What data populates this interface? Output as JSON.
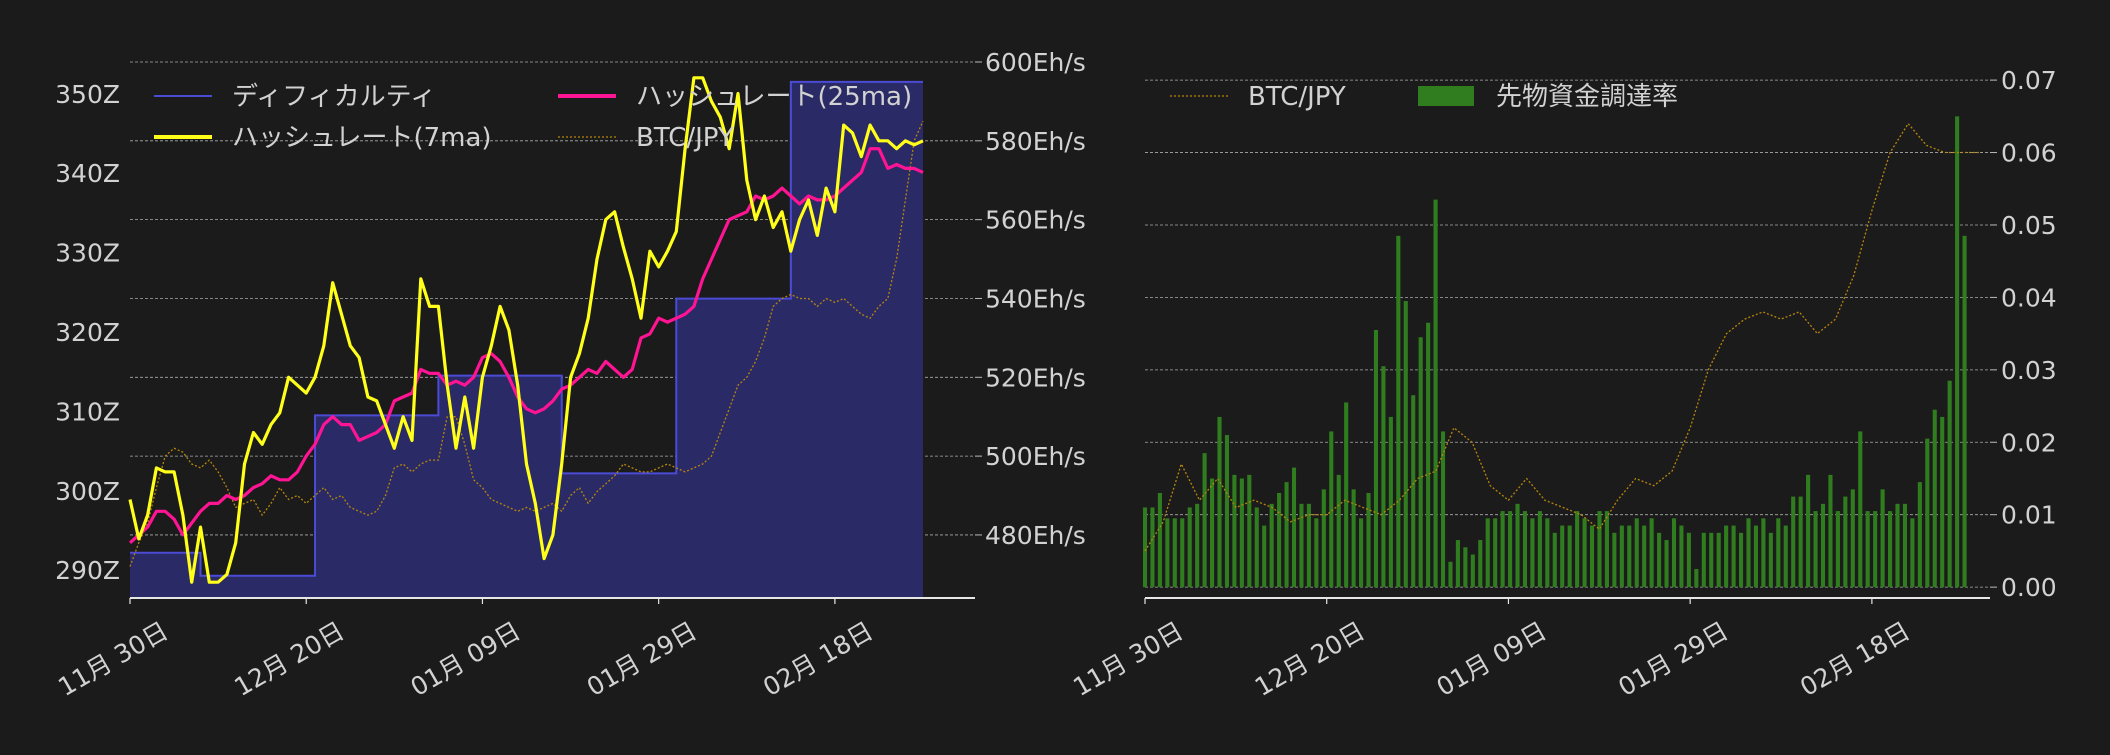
{
  "colors": {
    "background": "#1b1b1b",
    "text": "#d2d2d2",
    "grid": "#bbbbbb",
    "difficulty_line": "#4b4bd6",
    "difficulty_fill": "#2a2a66",
    "hashrate_7ma": "#ffff1a",
    "hashrate_25ma": "#ff1493",
    "btc_jpy": "#b8860b",
    "funding_bar": "#2f7d1e"
  },
  "chart_data": [
    {
      "type": "line",
      "x_tick_labels": [
        "11月 30日",
        "12月 20日",
        "01月 09日",
        "01月 29日",
        "02月 18日"
      ],
      "x_days": {
        "start": 0,
        "end": 90,
        "ticks": [
          0,
          20,
          40,
          60,
          80
        ]
      },
      "left_axis": {
        "ticks": [
          290,
          300,
          310,
          320,
          330,
          340,
          350
        ],
        "labels": [
          "290Z",
          "300Z",
          "310Z",
          "320Z",
          "330Z",
          "340Z",
          "350Z"
        ],
        "ylim": [
          286.5,
          354
        ]
      },
      "right_axis": {
        "ticks": [
          480,
          500,
          520,
          540,
          560,
          580,
          600
        ],
        "labels": [
          "480Eh/s",
          "500Eh/s",
          "520Eh/s",
          "540Eh/s",
          "560Eh/s",
          "580Eh/s",
          "600Eh/s"
        ],
        "ylim": [
          464,
          600
        ]
      },
      "legend": {
        "placement": "top",
        "entries": [
          "ディフィカルティ",
          "ハッシュレート(25ma)",
          "ハッシュレート(7ma)",
          "BTC/JPY"
        ]
      },
      "grid": true,
      "series": [
        {
          "name": "ディフィカルティ",
          "axis": "left",
          "style": "step-area",
          "x": [
            0,
            8,
            8,
            21,
            21,
            35,
            35,
            49,
            49,
            62,
            62,
            75,
            75,
            90
          ],
          "y": [
            292.2,
            292.2,
            289.3,
            289.3,
            309.5,
            309.5,
            314.5,
            314.5,
            302.2,
            302.2,
            324.2,
            324.2,
            351.5,
            351.5
          ]
        },
        {
          "name": "ハッシュレート(7ma)",
          "axis": "right",
          "x": [
            0,
            1,
            2,
            3,
            4,
            5,
            6,
            7,
            8,
            9,
            10,
            11,
            12,
            13,
            14,
            15,
            16,
            17,
            18,
            19,
            20,
            21,
            22,
            23,
            24,
            25,
            26,
            27,
            28,
            29,
            30,
            31,
            32,
            33,
            34,
            35,
            36,
            37,
            38,
            39,
            40,
            41,
            42,
            43,
            44,
            45,
            46,
            47,
            48,
            49,
            50,
            51,
            52,
            53,
            54,
            55,
            56,
            57,
            58,
            59,
            60,
            61,
            62,
            63,
            64,
            65,
            66,
            67,
            68,
            69,
            70,
            71,
            72,
            73,
            74,
            75,
            76,
            77,
            78,
            79,
            80,
            81,
            82,
            83,
            84,
            85,
            86,
            87,
            88,
            89,
            90
          ],
          "y": [
            489,
            479,
            485,
            497,
            496,
            496,
            485,
            468,
            482,
            468,
            468,
            470,
            478,
            498,
            506,
            503,
            508,
            511,
            520,
            518,
            516,
            520,
            528,
            544,
            536,
            528,
            525,
            515,
            514,
            508,
            502,
            510,
            504,
            545,
            538,
            538,
            518,
            502,
            515,
            502,
            520,
            528,
            538,
            532,
            518,
            498,
            488,
            474,
            480,
            498,
            520,
            526,
            535,
            550,
            560,
            562,
            553,
            545,
            535,
            552,
            548,
            552,
            557,
            578,
            596,
            596,
            590,
            586,
            578,
            592,
            570,
            560,
            566,
            558,
            562,
            552,
            560,
            565,
            556,
            568,
            562,
            584,
            582,
            576,
            584,
            580,
            580,
            578,
            580,
            579,
            580
          ]
        },
        {
          "name": "ハッシュレート(25ma)",
          "axis": "right",
          "x": [
            0,
            1,
            2,
            3,
            4,
            5,
            6,
            7,
            8,
            9,
            10,
            11,
            12,
            13,
            14,
            15,
            16,
            17,
            18,
            19,
            20,
            21,
            22,
            23,
            24,
            25,
            26,
            27,
            28,
            29,
            30,
            31,
            32,
            33,
            34,
            35,
            36,
            37,
            38,
            39,
            40,
            41,
            42,
            43,
            44,
            45,
            46,
            47,
            48,
            49,
            50,
            51,
            52,
            53,
            54,
            55,
            56,
            57,
            58,
            59,
            60,
            61,
            62,
            63,
            64,
            65,
            66,
            67,
            68,
            69,
            70,
            71,
            72,
            73,
            74,
            75,
            76,
            77,
            78,
            79,
            80,
            81,
            82,
            83,
            84,
            85,
            86,
            87,
            88,
            89,
            90
          ],
          "y": [
            478,
            480,
            482,
            486,
            486,
            484,
            480,
            483,
            486,
            488,
            488,
            490,
            489,
            490,
            492,
            493,
            495,
            494,
            494,
            496,
            500,
            503,
            508,
            510,
            508,
            508,
            504,
            505,
            506,
            508,
            514,
            515,
            516,
            522,
            521,
            521,
            518,
            519,
            518,
            520,
            525,
            526,
            524,
            520,
            515,
            512,
            511,
            512,
            514,
            517,
            518,
            520,
            522,
            521,
            524,
            522,
            520,
            522,
            530,
            531,
            535,
            534,
            535,
            536,
            538,
            545,
            550,
            555,
            560,
            561,
            562,
            566,
            565,
            566,
            568,
            566,
            564,
            566,
            565,
            565,
            566,
            568,
            570,
            572,
            578,
            578,
            573,
            574,
            573,
            573,
            572
          ]
        },
        {
          "name": "BTC/JPY",
          "axis": "right",
          "style": "dotted",
          "x": [
            0,
            1,
            2,
            3,
            4,
            5,
            6,
            7,
            8,
            9,
            10,
            11,
            12,
            13,
            14,
            15,
            16,
            17,
            18,
            19,
            20,
            21,
            22,
            23,
            24,
            25,
            26,
            27,
            28,
            29,
            30,
            31,
            32,
            33,
            34,
            35,
            36,
            37,
            38,
            39,
            40,
            41,
            42,
            43,
            44,
            45,
            46,
            47,
            48,
            49,
            50,
            51,
            52,
            53,
            54,
            55,
            56,
            57,
            58,
            59,
            60,
            61,
            62,
            63,
            64,
            65,
            66,
            67,
            68,
            69,
            70,
            71,
            72,
            73,
            74,
            75,
            76,
            77,
            78,
            79,
            80,
            81,
            82,
            83,
            84,
            85,
            86,
            87,
            88,
            89,
            90
          ],
          "y": [
            472,
            478,
            483,
            492,
            500,
            502,
            501,
            498,
            497,
            499,
            496,
            492,
            487,
            488,
            489,
            485,
            488,
            492,
            489,
            490,
            488,
            490,
            492,
            489,
            490,
            487,
            486,
            485,
            486,
            490,
            497,
            498,
            496,
            498,
            499,
            499,
            510,
            510,
            503,
            494,
            492,
            489,
            488,
            487,
            486,
            487,
            486,
            487,
            488,
            486,
            490,
            492,
            488,
            491,
            493,
            495,
            498,
            497,
            496,
            496,
            497,
            498,
            497,
            496,
            497,
            498,
            500,
            506,
            512,
            518,
            520,
            524,
            530,
            538,
            540,
            541,
            540,
            540,
            538,
            540,
            539,
            540,
            538,
            536,
            535,
            538,
            540,
            550,
            565,
            580,
            585
          ]
        }
      ]
    },
    {
      "type": "bar",
      "x_tick_labels": [
        "11月 30日",
        "12月 20日",
        "01月 09日",
        "01月 29日",
        "02月 18日"
      ],
      "x_days": {
        "start": 0,
        "end": 93,
        "ticks": [
          0,
          20,
          40,
          60,
          80
        ]
      },
      "right_axis": {
        "ticks": [
          0.0,
          0.01,
          0.02,
          0.03,
          0.04,
          0.05,
          0.06,
          0.07
        ],
        "labels": [
          "0.00",
          "0.01",
          "0.02",
          "0.03",
          "0.04",
          "0.05",
          "0.06",
          "0.07"
        ],
        "ylim": [
          -0.0015,
          0.0725
        ]
      },
      "legend": {
        "placement": "top-left",
        "entries": [
          "BTC/JPY",
          "先物資金調達率"
        ]
      },
      "grid": true,
      "series": [
        {
          "name": "先物資金調達率",
          "style": "bar",
          "values": [
            0.011,
            0.011,
            0.013,
            0.0095,
            0.0095,
            0.0095,
            0.011,
            0.0115,
            0.0185,
            0.015,
            0.0235,
            0.021,
            0.0155,
            0.015,
            0.0155,
            0.011,
            0.0085,
            0.0115,
            0.013,
            0.0145,
            0.0165,
            0.0115,
            0.0115,
            0.0095,
            0.0135,
            0.0215,
            0.0155,
            0.0255,
            0.0135,
            0.0095,
            0.013,
            0.0355,
            0.0305,
            0.0235,
            0.0485,
            0.0395,
            0.0265,
            0.0345,
            0.0365,
            0.0535,
            0.0215,
            0.0035,
            0.0065,
            0.0055,
            0.0045,
            0.0065,
            0.0095,
            0.0095,
            0.0105,
            0.0105,
            0.0115,
            0.0105,
            0.0095,
            0.0105,
            0.0095,
            0.0075,
            0.0085,
            0.0085,
            0.0105,
            0.0095,
            0.0085,
            0.0105,
            0.0105,
            0.0075,
            0.0085,
            0.0085,
            0.0095,
            0.0085,
            0.0095,
            0.0075,
            0.0065,
            0.0095,
            0.0085,
            0.0075,
            0.0025,
            0.0075,
            0.0075,
            0.0075,
            0.0085,
            0.0085,
            0.0075,
            0.0095,
            0.0085,
            0.0095,
            0.0075,
            0.0095,
            0.0085,
            0.0125,
            0.0125,
            0.0155,
            0.0105,
            0.0115,
            0.0155,
            0.0105,
            0.0125,
            0.0135,
            0.0215,
            0.0105,
            0.0105,
            0.0135,
            0.0105,
            0.0115,
            0.0115,
            0.0095,
            0.0145,
            0.0205,
            0.0245,
            0.0235,
            0.0285,
            0.065,
            0.0485
          ],
          "x_start": 0,
          "x_step": 0.82
        },
        {
          "name": "BTC/JPY",
          "style": "dotted",
          "x": [
            0,
            2,
            4,
            6,
            8,
            10,
            12,
            14,
            16,
            18,
            20,
            22,
            24,
            26,
            28,
            30,
            32,
            34,
            36,
            38,
            40,
            42,
            44,
            46,
            48,
            50,
            52,
            54,
            56,
            58,
            60,
            62,
            64,
            66,
            68,
            70,
            72,
            74,
            76,
            78,
            80,
            82,
            84,
            86,
            88,
            90,
            92
          ],
          "y": [
            0.005,
            0.009,
            0.017,
            0.012,
            0.015,
            0.011,
            0.012,
            0.011,
            0.009,
            0.01,
            0.01,
            0.012,
            0.011,
            0.01,
            0.012,
            0.015,
            0.016,
            0.022,
            0.02,
            0.014,
            0.012,
            0.015,
            0.012,
            0.011,
            0.01,
            0.008,
            0.012,
            0.015,
            0.014,
            0.016,
            0.022,
            0.03,
            0.035,
            0.037,
            0.038,
            0.037,
            0.038,
            0.035,
            0.037,
            0.043,
            0.052,
            0.06,
            0.064,
            0.061,
            0.06,
            0.06,
            0.06
          ]
        }
      ]
    }
  ]
}
